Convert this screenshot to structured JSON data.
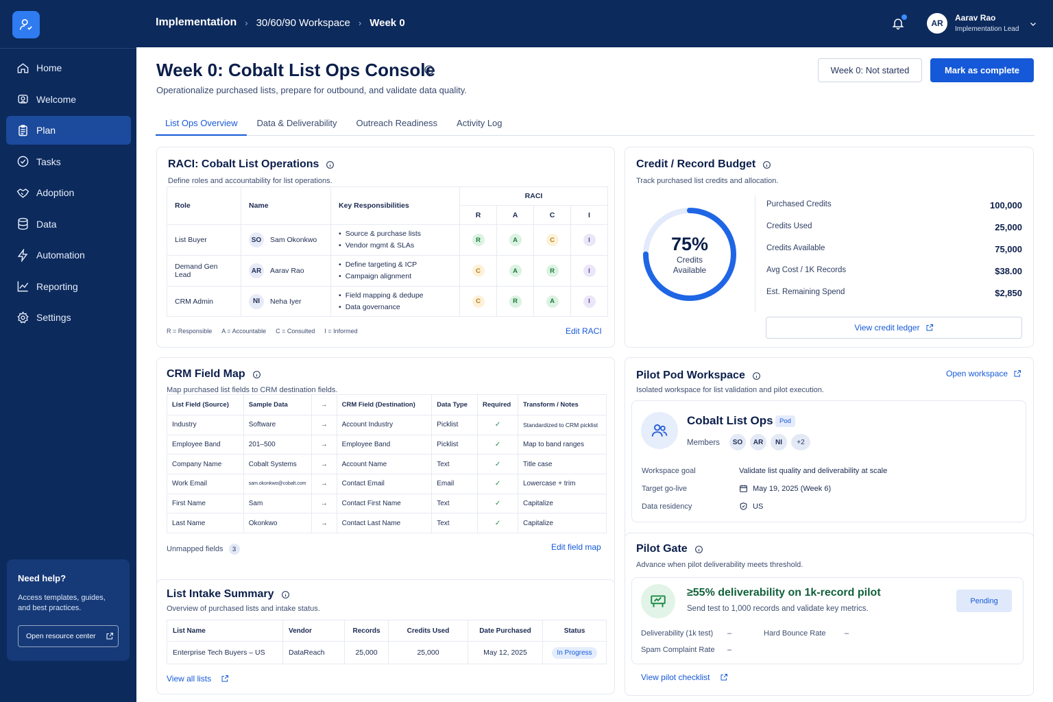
{
  "sidebar": {
    "items": [
      {
        "label": "Home",
        "icon": "home-icon"
      },
      {
        "label": "Welcome",
        "icon": "welcome-icon"
      },
      {
        "label": "Plan",
        "icon": "clipboard-icon",
        "active": true
      },
      {
        "label": "Tasks",
        "icon": "check-circle-icon"
      },
      {
        "label": "Adoption",
        "icon": "handshake-icon"
      },
      {
        "label": "Data",
        "icon": "database-icon"
      },
      {
        "label": "Automation",
        "icon": "lightning-icon"
      },
      {
        "label": "Reporting",
        "icon": "chart-line-icon"
      },
      {
        "label": "Settings",
        "icon": "gear-icon"
      }
    ],
    "help": {
      "title": "Need help?",
      "text": "Access templates, guides, and best practices.",
      "button": "Open resource center"
    }
  },
  "topbar": {
    "crumbs": [
      "Implementation",
      "30/60/90 Workspace",
      "Week 0"
    ],
    "user": {
      "initials": "AR",
      "name": "Aarav Rao",
      "role": "Implementation Lead"
    }
  },
  "header": {
    "title": "Week 0: Cobalt List Ops Console",
    "subtitle": "Operationalize purchased lists, prepare for outbound, and validate data quality.",
    "status": "Week 0: Not started",
    "primary": "Mark as complete"
  },
  "tabs": [
    "List Ops Overview",
    "Data & Deliverability",
    "Outreach Readiness",
    "Activity Log"
  ],
  "raci": {
    "title": "RACI: Cobalt List Operations",
    "subtitle": "Define roles and accountability for list operations.",
    "headers": {
      "role": "Role",
      "name": "Name",
      "resp": "Key Responsibilities",
      "group": "RACI",
      "cols": [
        "R",
        "A",
        "C",
        "I"
      ]
    },
    "rows": [
      {
        "role": "List Buyer",
        "initials": "SO",
        "name": "Sam Okonkwo",
        "resp": [
          "Source & purchase lists",
          "Vendor mgmt & SLAs"
        ],
        "raci": [
          "R",
          "A",
          "C",
          "I"
        ]
      },
      {
        "role": "Demand Gen Lead",
        "initials": "AR",
        "name": "Aarav Rao",
        "resp": [
          "Define targeting & ICP",
          "Campaign alignment"
        ],
        "raci": [
          "C",
          "A",
          "R",
          "I"
        ]
      },
      {
        "role": "CRM Admin",
        "initials": "NI",
        "name": "Neha Iyer",
        "resp": [
          "Field mapping & dedupe",
          "Data governance"
        ],
        "raci": [
          "C",
          "R",
          "A",
          "I"
        ]
      }
    ],
    "legend": [
      "R = Responsible",
      "A = Accountable",
      "C = Consulted",
      "I = Informed"
    ],
    "edit": "Edit RACI"
  },
  "budget": {
    "title": "Credit / Record Budget",
    "subtitle": "Track purchased list credits and allocation.",
    "pct_value": 75,
    "pct_label": "75%",
    "donut_label": "Credits Available",
    "rows": [
      {
        "label": "Purchased Credits",
        "value": "100,000"
      },
      {
        "label": "Credits Used",
        "value": "25,000"
      },
      {
        "label": "Credits Available",
        "value": "75,000"
      },
      {
        "label": "Avg Cost / 1K Records",
        "value": "$38.00"
      },
      {
        "label": "Est. Remaining Spend",
        "value": "$2,850"
      }
    ],
    "ledger": "View credit ledger"
  },
  "fieldmap": {
    "title": "CRM Field Map",
    "subtitle": "Map purchased list fields to CRM destination fields.",
    "headers": [
      "List Field (Source)",
      "Sample Data",
      "→",
      "CRM Field (Destination)",
      "Data Type",
      "Required",
      "Transform / Notes"
    ],
    "rows": [
      [
        "Industry",
        "Software",
        "→",
        "Account Industry",
        "Picklist",
        "✓",
        "Standardized to CRM picklist"
      ],
      [
        "Employee Band",
        "201–500",
        "→",
        "Employee Band",
        "Picklist",
        "✓",
        "Map to band ranges"
      ],
      [
        "Company Name",
        "Cobalt Systems",
        "→",
        "Account Name",
        "Text",
        "✓",
        "Title case"
      ],
      [
        "Work Email",
        "sam.okonkwo@cobalt.com",
        "→",
        "Contact Email",
        "Email",
        "✓",
        "Lowercase + trim"
      ],
      [
        "First Name",
        "Sam",
        "→",
        "Contact First Name",
        "Text",
        "✓",
        "Capitalize"
      ],
      [
        "Last Name",
        "Okonkwo",
        "→",
        "Contact Last Name",
        "Text",
        "✓",
        "Capitalize"
      ]
    ],
    "unmapped_label": "Unmapped fields",
    "unmapped_count": "3",
    "edit": "Edit field map"
  },
  "intake": {
    "title": "List Intake Summary",
    "subtitle": "Overview of purchased lists and intake status.",
    "headers": [
      "List Name",
      "Vendor",
      "Records",
      "Credits Used",
      "Date Purchased",
      "Status"
    ],
    "rows": [
      [
        "Enterprise Tech Buyers – US",
        "DataReach",
        "25,000",
        "25,000",
        "May 12, 2025",
        "In Progress"
      ]
    ],
    "view_all": "View all lists"
  },
  "pod": {
    "title": "Pilot Pod Workspace",
    "subtitle": "Isolated workspace for list validation and pilot execution.",
    "open": "Open workspace",
    "name": "Cobalt List Ops",
    "tag": "Pod",
    "members_label": "Members",
    "members": [
      "SO",
      "AR",
      "NI",
      "+2"
    ],
    "goal_label": "Workspace goal",
    "goal": "Validate list quality and deliverability at scale",
    "golive_label": "Target go-live",
    "golive": "May 19, 2025 (Week 6)",
    "residency_label": "Data residency",
    "residency": "US"
  },
  "gate": {
    "title": "Pilot Gate",
    "subtitle": "Advance when pilot deliverability meets threshold.",
    "headline": "≥55% deliverability on 1k-record pilot",
    "desc": "Send test to 1,000 records and validate key metrics.",
    "status": "Pending",
    "metrics": [
      {
        "label": "Deliverability (1k test)",
        "value": "–"
      },
      {
        "label": "Hard Bounce Rate",
        "value": "–"
      },
      {
        "label": "Spam Complaint Rate",
        "value": "–"
      }
    ],
    "checklist": "View pilot checklist"
  },
  "colors": {
    "navy": "#0c2a5c",
    "primary": "#1559d8",
    "green": "#1f8a46",
    "amber": "#b7791f"
  }
}
